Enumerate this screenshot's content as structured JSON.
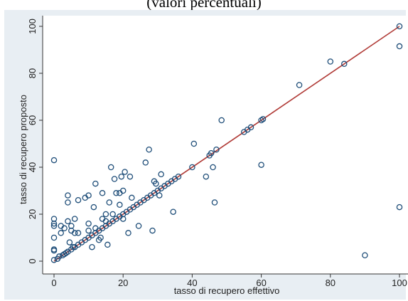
{
  "title_fragment": "(valori percentuali)",
  "colors": {
    "outer_background": "#e8eef3",
    "plot_background": "#ffffff",
    "marker": "#1f4e79",
    "fit_line": "#b03a36"
  },
  "chart_data": {
    "type": "scatter",
    "xlabel": "tasso di recupero effettivo",
    "ylabel": "tasso di recupero proposto",
    "xlim": [
      0,
      100
    ],
    "ylim": [
      0,
      100
    ],
    "x_ticks": [
      0,
      20,
      40,
      60,
      80,
      100
    ],
    "y_ticks": [
      0,
      20,
      40,
      60,
      80,
      100
    ],
    "grid": false,
    "fit_line": {
      "x": [
        0,
        100
      ],
      "y": [
        0,
        100
      ]
    },
    "points": [
      [
        0,
        43
      ],
      [
        0,
        18
      ],
      [
        0,
        16
      ],
      [
        0,
        15
      ],
      [
        0,
        10
      ],
      [
        0,
        5
      ],
      [
        0,
        4.5
      ],
      [
        0,
        0.5
      ],
      [
        1,
        1
      ],
      [
        1.5,
        2
      ],
      [
        2,
        12
      ],
      [
        2,
        15
      ],
      [
        2.5,
        2.5
      ],
      [
        3,
        3
      ],
      [
        3,
        14
      ],
      [
        3.5,
        3.5
      ],
      [
        4,
        4
      ],
      [
        4,
        17
      ],
      [
        4,
        25
      ],
      [
        4,
        28
      ],
      [
        4.5,
        8
      ],
      [
        5,
        5
      ],
      [
        5,
        13
      ],
      [
        5,
        15
      ],
      [
        5.5,
        6
      ],
      [
        6,
        6
      ],
      [
        6,
        12
      ],
      [
        6,
        18
      ],
      [
        7,
        7
      ],
      [
        7,
        12
      ],
      [
        7,
        26
      ],
      [
        8,
        8
      ],
      [
        9,
        9
      ],
      [
        9,
        27
      ],
      [
        10,
        10
      ],
      [
        10,
        13
      ],
      [
        10,
        16
      ],
      [
        10,
        28
      ],
      [
        11,
        11
      ],
      [
        11,
        6
      ],
      [
        11.5,
        23
      ],
      [
        12,
        12
      ],
      [
        12,
        14
      ],
      [
        12,
        33
      ],
      [
        13,
        13
      ],
      [
        13,
        9
      ],
      [
        13.5,
        10
      ],
      [
        14,
        14
      ],
      [
        14,
        18
      ],
      [
        14,
        29
      ],
      [
        15,
        15
      ],
      [
        15,
        17
      ],
      [
        15,
        20
      ],
      [
        15.5,
        7
      ],
      [
        16,
        16
      ],
      [
        16,
        25
      ],
      [
        16.5,
        40
      ],
      [
        17,
        17
      ],
      [
        17,
        20
      ],
      [
        17.5,
        35
      ],
      [
        18,
        18
      ],
      [
        18,
        29
      ],
      [
        19,
        19
      ],
      [
        19,
        24
      ],
      [
        19,
        29
      ],
      [
        19.5,
        36
      ],
      [
        20,
        20
      ],
      [
        20,
        18
      ],
      [
        20,
        30
      ],
      [
        20.5,
        38
      ],
      [
        21,
        21
      ],
      [
        21.5,
        12
      ],
      [
        22,
        22
      ],
      [
        22,
        36
      ],
      [
        22.5,
        27
      ],
      [
        23,
        23
      ],
      [
        24,
        24
      ],
      [
        24.5,
        15
      ],
      [
        25,
        25
      ],
      [
        26,
        26
      ],
      [
        26.5,
        42
      ],
      [
        27,
        27
      ],
      [
        27.5,
        47.5
      ],
      [
        28,
        28
      ],
      [
        28.5,
        13
      ],
      [
        29,
        29
      ],
      [
        29,
        34
      ],
      [
        29.5,
        33
      ],
      [
        30,
        30
      ],
      [
        30.5,
        28
      ],
      [
        31,
        31
      ],
      [
        31,
        37
      ],
      [
        32,
        32
      ],
      [
        33,
        33
      ],
      [
        34,
        34
      ],
      [
        34.5,
        21
      ],
      [
        35,
        35
      ],
      [
        36,
        36
      ],
      [
        40,
        40
      ],
      [
        40.5,
        50
      ],
      [
        44,
        36
      ],
      [
        45,
        45
      ],
      [
        45.5,
        46
      ],
      [
        46,
        40
      ],
      [
        46.5,
        25
      ],
      [
        47,
        47.5
      ],
      [
        48.5,
        60
      ],
      [
        55,
        55
      ],
      [
        56,
        56
      ],
      [
        57,
        57
      ],
      [
        60,
        60
      ],
      [
        60.5,
        60.5
      ],
      [
        60,
        41
      ],
      [
        71,
        75
      ],
      [
        80,
        85
      ],
      [
        84,
        84
      ],
      [
        90,
        2.5
      ],
      [
        100,
        100
      ],
      [
        100,
        91.5
      ],
      [
        100,
        23
      ]
    ]
  }
}
